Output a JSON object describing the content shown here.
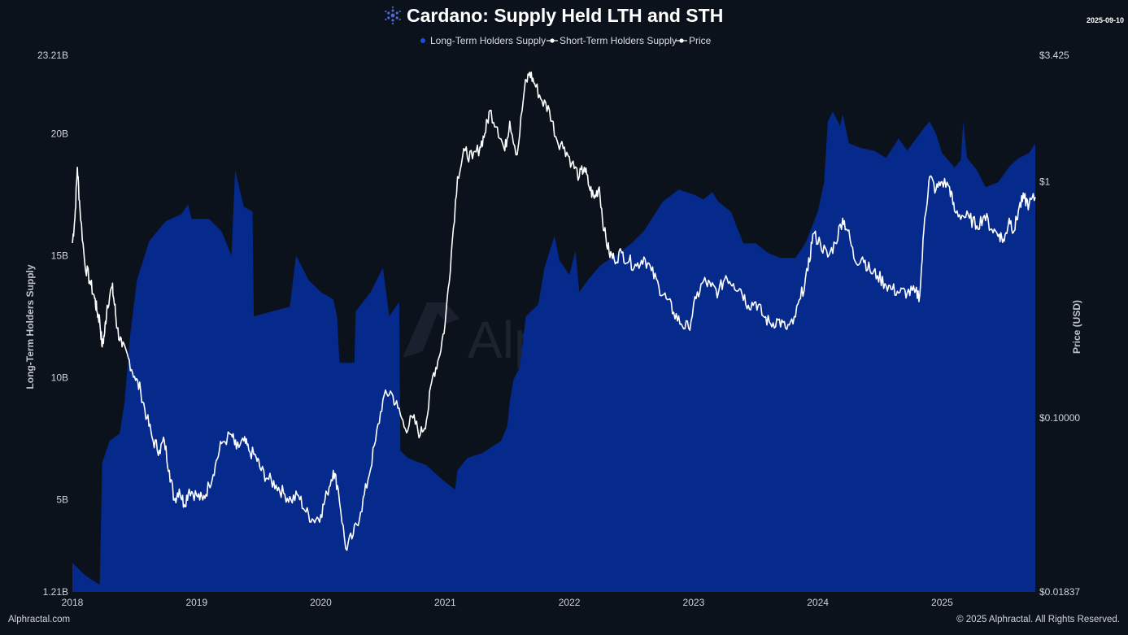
{
  "header": {
    "title": "Cardano: Supply Held LTH and STH",
    "date": "2025-09-10"
  },
  "legend": {
    "items": [
      "Long-Term Holders Supply",
      "Short-Term Holders Supply",
      "Price"
    ]
  },
  "footer": {
    "left": "Alphractal.com",
    "right": "© 2025 Alphractal. All Rights Reserved."
  },
  "watermark": "Alphractal",
  "colors": {
    "background": "#0c121c",
    "lth_area": "#052a8c",
    "price_line": "#ffffff"
  },
  "chart_data": {
    "type": "area",
    "xlabel": "",
    "ylabel_left": "Long-Term Holders Supply",
    "ylabel_right": "Price (USD)",
    "x_ticks": [
      "2018",
      "2019",
      "2020",
      "2021",
      "2022",
      "2023",
      "2024",
      "2025"
    ],
    "y_left_ticks": [
      "1.21B",
      "5B",
      "10B",
      "15B",
      "20B",
      "23.21B"
    ],
    "y_right_ticks": [
      "$0.01837",
      "$0.10000",
      "$1",
      "$3.425"
    ],
    "y_left_range": [
      1.21,
      23.21
    ],
    "y_left_unit": "B",
    "y_right_range": [
      0.01837,
      3.425
    ],
    "y_right_scale": "log",
    "x_range": [
      2018.0,
      2025.75
    ],
    "grid": false,
    "legend_position": "top-center",
    "series": [
      {
        "name": "Long-Term Holders Supply",
        "type": "area",
        "points": [
          [
            2018.0,
            2.4
          ],
          [
            2018.1,
            1.9
          ],
          [
            2018.22,
            1.5
          ],
          [
            2018.24,
            6.5
          ],
          [
            2018.3,
            7.4
          ],
          [
            2018.38,
            7.7
          ],
          [
            2018.42,
            9.0
          ],
          [
            2018.46,
            11.5
          ],
          [
            2018.52,
            14.0
          ],
          [
            2018.62,
            15.6
          ],
          [
            2018.75,
            16.4
          ],
          [
            2018.88,
            16.7
          ],
          [
            2018.93,
            17.1
          ],
          [
            2018.96,
            16.5
          ],
          [
            2019.1,
            16.5
          ],
          [
            2019.2,
            16.0
          ],
          [
            2019.28,
            15.0
          ],
          [
            2019.31,
            18.5
          ],
          [
            2019.38,
            17.0
          ],
          [
            2019.45,
            16.8
          ],
          [
            2019.46,
            12.5
          ],
          [
            2019.6,
            12.7
          ],
          [
            2019.75,
            12.9
          ],
          [
            2019.8,
            15.0
          ],
          [
            2019.9,
            14.0
          ],
          [
            2020.0,
            13.5
          ],
          [
            2020.1,
            13.2
          ],
          [
            2020.13,
            12.5
          ],
          [
            2020.15,
            10.6
          ],
          [
            2020.27,
            10.6
          ],
          [
            2020.28,
            12.7
          ],
          [
            2020.4,
            13.5
          ],
          [
            2020.5,
            14.5
          ],
          [
            2020.55,
            12.5
          ],
          [
            2020.63,
            13.1
          ],
          [
            2020.64,
            7.0
          ],
          [
            2020.7,
            6.7
          ],
          [
            2020.85,
            6.4
          ],
          [
            2020.98,
            5.8
          ],
          [
            2021.08,
            5.4
          ],
          [
            2021.1,
            6.2
          ],
          [
            2021.18,
            6.7
          ],
          [
            2021.3,
            6.9
          ],
          [
            2021.45,
            7.4
          ],
          [
            2021.5,
            8.0
          ],
          [
            2021.52,
            9.0
          ],
          [
            2021.55,
            9.9
          ],
          [
            2021.6,
            10.4
          ],
          [
            2021.65,
            12.5
          ],
          [
            2021.75,
            13.0
          ],
          [
            2021.8,
            14.5
          ],
          [
            2021.88,
            15.8
          ],
          [
            2021.92,
            14.8
          ],
          [
            2022.0,
            14.2
          ],
          [
            2022.05,
            15.2
          ],
          [
            2022.08,
            13.5
          ],
          [
            2022.15,
            14.0
          ],
          [
            2022.25,
            14.6
          ],
          [
            2022.4,
            15.1
          ],
          [
            2022.5,
            15.5
          ],
          [
            2022.6,
            16.0
          ],
          [
            2022.75,
            17.2
          ],
          [
            2022.88,
            17.7
          ],
          [
            2023.0,
            17.5
          ],
          [
            2023.08,
            17.3
          ],
          [
            2023.15,
            17.6
          ],
          [
            2023.2,
            17.2
          ],
          [
            2023.3,
            16.8
          ],
          [
            2023.4,
            15.5
          ],
          [
            2023.5,
            15.5
          ],
          [
            2023.6,
            15.1
          ],
          [
            2023.7,
            14.9
          ],
          [
            2023.82,
            14.9
          ],
          [
            2023.9,
            15.5
          ],
          [
            2024.0,
            16.8
          ],
          [
            2024.05,
            18.0
          ],
          [
            2024.08,
            20.5
          ],
          [
            2024.12,
            20.9
          ],
          [
            2024.18,
            20.3
          ],
          [
            2024.2,
            20.8
          ],
          [
            2024.25,
            19.6
          ],
          [
            2024.35,
            19.4
          ],
          [
            2024.45,
            19.3
          ],
          [
            2024.55,
            19.0
          ],
          [
            2024.65,
            19.8
          ],
          [
            2024.72,
            19.3
          ],
          [
            2024.85,
            20.2
          ],
          [
            2024.9,
            20.5
          ],
          [
            2024.95,
            20.0
          ],
          [
            2025.0,
            19.2
          ],
          [
            2025.1,
            18.6
          ],
          [
            2025.15,
            18.9
          ],
          [
            2025.17,
            20.5
          ],
          [
            2025.2,
            19.0
          ],
          [
            2025.28,
            18.5
          ],
          [
            2025.35,
            17.8
          ],
          [
            2025.45,
            18.0
          ],
          [
            2025.55,
            18.7
          ],
          [
            2025.62,
            19.0
          ],
          [
            2025.7,
            19.2
          ],
          [
            2025.75,
            19.6
          ]
        ]
      },
      {
        "name": "Price",
        "type": "line",
        "axis": "right",
        "points": [
          [
            2018.0,
            0.55
          ],
          [
            2018.02,
            0.7
          ],
          [
            2018.04,
            1.15
          ],
          [
            2018.06,
            0.78
          ],
          [
            2018.1,
            0.45
          ],
          [
            2018.14,
            0.38
          ],
          [
            2018.18,
            0.32
          ],
          [
            2018.2,
            0.28
          ],
          [
            2018.22,
            0.26
          ],
          [
            2018.24,
            0.2
          ],
          [
            2018.26,
            0.23
          ],
          [
            2018.28,
            0.3
          ],
          [
            2018.32,
            0.36
          ],
          [
            2018.34,
            0.3
          ],
          [
            2018.36,
            0.24
          ],
          [
            2018.4,
            0.2
          ],
          [
            2018.45,
            0.18
          ],
          [
            2018.5,
            0.15
          ],
          [
            2018.55,
            0.13
          ],
          [
            2018.6,
            0.1
          ],
          [
            2018.65,
            0.08
          ],
          [
            2018.7,
            0.073
          ],
          [
            2018.74,
            0.08
          ],
          [
            2018.78,
            0.06
          ],
          [
            2018.82,
            0.045
          ],
          [
            2018.86,
            0.05
          ],
          [
            2018.9,
            0.043
          ],
          [
            2018.94,
            0.05
          ],
          [
            2019.0,
            0.047
          ],
          [
            2019.05,
            0.045
          ],
          [
            2019.1,
            0.052
          ],
          [
            2019.15,
            0.063
          ],
          [
            2019.2,
            0.078
          ],
          [
            2019.28,
            0.085
          ],
          [
            2019.32,
            0.074
          ],
          [
            2019.38,
            0.08
          ],
          [
            2019.42,
            0.073
          ],
          [
            2019.48,
            0.068
          ],
          [
            2019.52,
            0.06
          ],
          [
            2019.58,
            0.055
          ],
          [
            2019.64,
            0.052
          ],
          [
            2019.7,
            0.048
          ],
          [
            2019.76,
            0.045
          ],
          [
            2019.82,
            0.047
          ],
          [
            2019.88,
            0.04
          ],
          [
            2019.94,
            0.037
          ],
          [
            2020.0,
            0.039
          ],
          [
            2020.05,
            0.048
          ],
          [
            2020.1,
            0.06
          ],
          [
            2020.14,
            0.05
          ],
          [
            2020.2,
            0.028
          ],
          [
            2020.26,
            0.032
          ],
          [
            2020.32,
            0.04
          ],
          [
            2020.38,
            0.055
          ],
          [
            2020.44,
            0.08
          ],
          [
            2020.5,
            0.12
          ],
          [
            2020.56,
            0.13
          ],
          [
            2020.62,
            0.11
          ],
          [
            2020.68,
            0.09
          ],
          [
            2020.74,
            0.1
          ],
          [
            2020.8,
            0.085
          ],
          [
            2020.85,
            0.098
          ],
          [
            2020.9,
            0.15
          ],
          [
            2020.95,
            0.18
          ],
          [
            2021.0,
            0.25
          ],
          [
            2021.05,
            0.5
          ],
          [
            2021.1,
            1.05
          ],
          [
            2021.16,
            1.35
          ],
          [
            2021.22,
            1.25
          ],
          [
            2021.28,
            1.4
          ],
          [
            2021.32,
            1.6
          ],
          [
            2021.36,
            2.0
          ],
          [
            2021.42,
            1.7
          ],
          [
            2021.48,
            1.35
          ],
          [
            2021.52,
            1.8
          ],
          [
            2021.58,
            1.3
          ],
          [
            2021.64,
            2.5
          ],
          [
            2021.68,
            2.9
          ],
          [
            2021.72,
            2.6
          ],
          [
            2021.78,
            2.2
          ],
          [
            2021.84,
            2.0
          ],
          [
            2021.9,
            1.5
          ],
          [
            2021.96,
            1.4
          ],
          [
            2022.02,
            1.2
          ],
          [
            2022.08,
            1.05
          ],
          [
            2022.12,
            1.15
          ],
          [
            2022.16,
            0.95
          ],
          [
            2022.2,
            0.85
          ],
          [
            2022.24,
            0.95
          ],
          [
            2022.28,
            0.62
          ],
          [
            2022.32,
            0.5
          ],
          [
            2022.36,
            0.47
          ],
          [
            2022.42,
            0.5
          ],
          [
            2022.48,
            0.46
          ],
          [
            2022.54,
            0.44
          ],
          [
            2022.6,
            0.48
          ],
          [
            2022.66,
            0.42
          ],
          [
            2022.72,
            0.36
          ],
          [
            2022.78,
            0.32
          ],
          [
            2022.84,
            0.28
          ],
          [
            2022.9,
            0.25
          ],
          [
            2022.96,
            0.24
          ],
          [
            2023.02,
            0.32
          ],
          [
            2023.08,
            0.38
          ],
          [
            2023.14,
            0.36
          ],
          [
            2023.2,
            0.34
          ],
          [
            2023.26,
            0.4
          ],
          [
            2023.32,
            0.37
          ],
          [
            2023.38,
            0.35
          ],
          [
            2023.44,
            0.3
          ],
          [
            2023.5,
            0.31
          ],
          [
            2023.56,
            0.27
          ],
          [
            2023.62,
            0.25
          ],
          [
            2023.68,
            0.26
          ],
          [
            2023.74,
            0.24
          ],
          [
            2023.8,
            0.25
          ],
          [
            2023.86,
            0.32
          ],
          [
            2023.92,
            0.42
          ],
          [
            2023.96,
            0.6
          ],
          [
            2024.02,
            0.55
          ],
          [
            2024.08,
            0.48
          ],
          [
            2024.14,
            0.55
          ],
          [
            2024.2,
            0.7
          ],
          [
            2024.24,
            0.62
          ],
          [
            2024.3,
            0.46
          ],
          [
            2024.36,
            0.48
          ],
          [
            2024.42,
            0.42
          ],
          [
            2024.48,
            0.4
          ],
          [
            2024.54,
            0.37
          ],
          [
            2024.6,
            0.35
          ],
          [
            2024.66,
            0.34
          ],
          [
            2024.72,
            0.34
          ],
          [
            2024.78,
            0.34
          ],
          [
            2024.82,
            0.33
          ],
          [
            2024.86,
            0.7
          ],
          [
            2024.9,
            1.05
          ],
          [
            2024.95,
            0.92
          ],
          [
            2025.0,
            1.0
          ],
          [
            2025.06,
            0.95
          ],
          [
            2025.1,
            0.75
          ],
          [
            2025.16,
            0.72
          ],
          [
            2025.22,
            0.7
          ],
          [
            2025.28,
            0.65
          ],
          [
            2025.34,
            0.72
          ],
          [
            2025.4,
            0.63
          ],
          [
            2025.46,
            0.6
          ],
          [
            2025.5,
            0.56
          ],
          [
            2025.54,
            0.7
          ],
          [
            2025.58,
            0.62
          ],
          [
            2025.62,
            0.78
          ],
          [
            2025.66,
            0.85
          ],
          [
            2025.7,
            0.8
          ],
          [
            2025.75,
            0.86
          ]
        ]
      }
    ]
  }
}
